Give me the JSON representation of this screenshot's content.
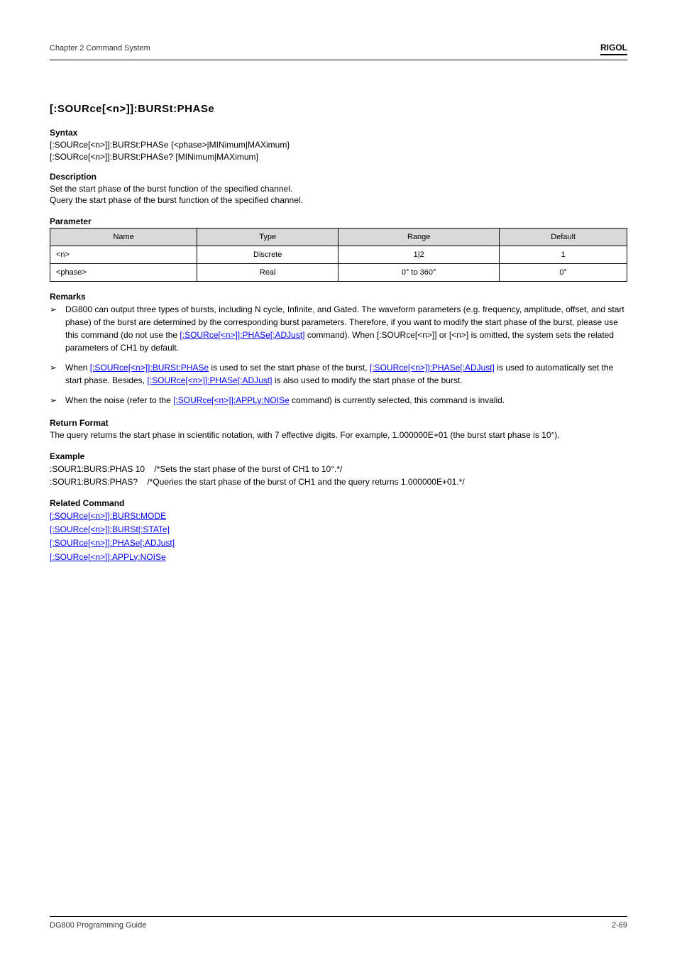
{
  "header": {
    "chapter": "Chapter 2 Command System",
    "brand": "RIGOL"
  },
  "command": {
    "title": "[:SOURce[<n>]]:BURSt:PHASe",
    "syntax_label": "Syntax",
    "syntax1": "[:SOURce[<n>]]:BURSt:PHASe {<phase>|MINimum|MAXimum}",
    "syntax2": "[:SOURce[<n>]]:BURSt:PHASe? [MINimum|MAXimum]",
    "description_label": "Description",
    "description1": "Set the start phase of the burst function of the specified channel.",
    "description2": "Query the start phase of the burst function of the specified channel.",
    "parameter_label": "Parameter"
  },
  "table": {
    "headers": [
      "Name",
      "Type",
      "Range",
      "Default"
    ],
    "rows": [
      [
        "<n>",
        "Discrete",
        "1|2",
        "1"
      ],
      [
        "<phase>",
        "Real",
        "0° to 360°",
        "0°"
      ]
    ]
  },
  "remarks": {
    "label": "Remarks",
    "items": [
      {
        "text": "DG800 can output three types of bursts, including N cycle, Infinite, and Gated. The waveform parameters (e.g. frequency, amplitude, offset, and start phase) of the burst are determined by the corresponding burst parameters. Therefore, if you want to modify the start phase of the burst, please use this command (do not use the "
      },
      {
        "text_parts": [
          {
            "text": "When [:SOURce[<n>]] or [<n>] is omitted, the system sets the related parameters of CH1 by default."
          }
        ]
      },
      {
        "text_parts": [
          {
            "text": "When "
          },
          {
            "text": "[:SOURce[<n>]]:BURSt:PHASe",
            "link": true
          },
          {
            "text": " is used to set the start phase of the burst, "
          },
          {
            "text": "[:SOURce[<n>]]:PHASe[:ADJust]",
            "link": true
          },
          {
            "text": " is used to automatically set the start phase. Besides, "
          },
          {
            "text": "[:SOURce[<n>]]:PHASe[:ADJust]",
            "link": true
          },
          {
            "text": " is also used to modify the start phase of the burst."
          }
        ]
      },
      {
        "text_parts": [
          {
            "text": "When the noise (refer to the "
          },
          {
            "text": "[:SOURce[<n>]]:APPLy:NOISe",
            "link": true
          },
          {
            "text": " command) is currently selected, this command is invalid."
          }
        ]
      }
    ]
  },
  "return_format": {
    "label": "Return Format",
    "text": "The query returns the start phase in scientific notation, with 7 effective digits. For example, 1.000000E+01 (the burst start phase is 10°)."
  },
  "example": {
    "label": "Example",
    "line1_cmd": ":SOUR1:BURS:PHAS 10",
    "line1_desc": "/*Sets the start phase of the burst of CH1 to 10°.*/",
    "line2_cmd": ":SOUR1:BURS:PHAS?",
    "line2_desc": "/*Queries the start phase of the burst of CH1 and the query returns 1.000000E+01.*/"
  },
  "related": {
    "label": "Related Command",
    "links": [
      "[:SOURce[<n>]]:BURSt:MODE",
      "[:SOURce[<n>]]:BURSt[:STATe]",
      "[:SOURce[<n>]]:PHASe[:ADJust]",
      "[:SOURce[<n>]]:APPLy:NOISe"
    ]
  },
  "footer": {
    "left": "DG800 Programming Guide",
    "right": "2-69"
  }
}
